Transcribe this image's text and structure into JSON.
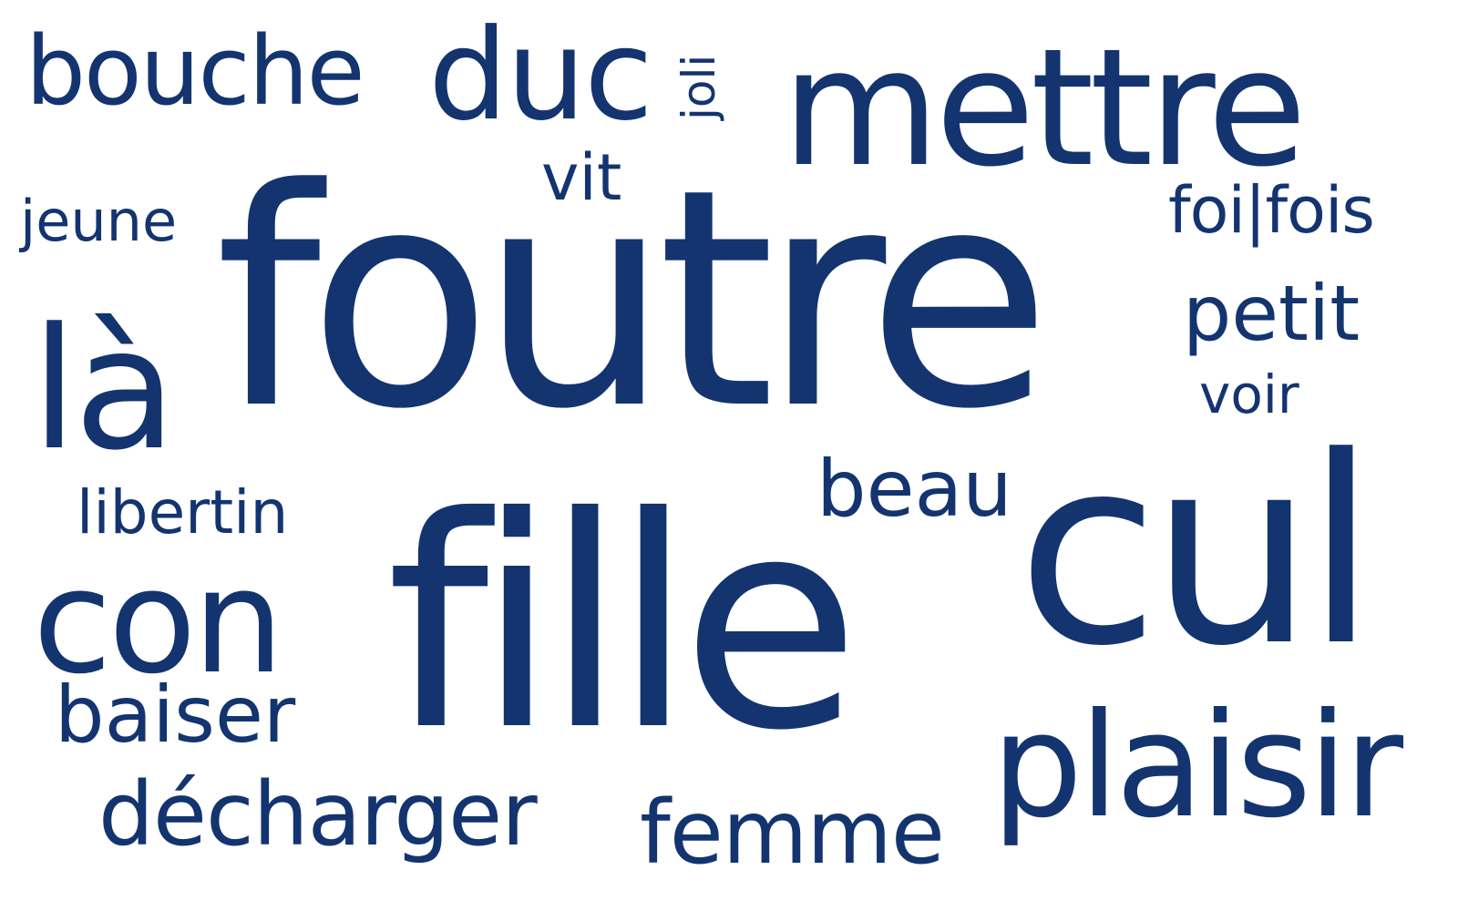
{
  "color": "#13346f",
  "words": {
    "foutre": "foutre",
    "fille": "fille",
    "cul": "cul",
    "mettre": "mettre",
    "la": "là",
    "con": "con",
    "duc": "duc",
    "bouche": "bouche",
    "plaisir": "plaisir",
    "decharger": "décharger",
    "femme": "femme",
    "baiser": "baiser",
    "beau": "beau",
    "libertin": "libertin",
    "jeune": "jeune",
    "vit": "vit",
    "joli": "joli",
    "foi_fois": "foi|fois",
    "petit": "petit",
    "voir": "voir"
  }
}
